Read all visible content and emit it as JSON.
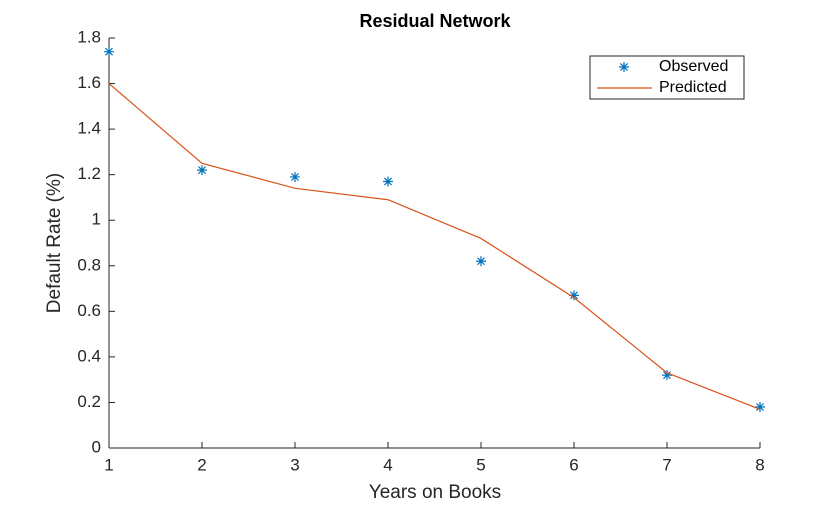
{
  "chart_data": {
    "type": "line",
    "title": "Residual Network",
    "x_label": "Years on Books",
    "y_label": "Default Rate (%)",
    "x": [
      1,
      2,
      3,
      4,
      5,
      6,
      7,
      8
    ],
    "series": [
      {
        "name": "Observed",
        "kind": "scatter",
        "color": "#0072bd",
        "values": [
          1.74,
          1.22,
          1.19,
          1.17,
          0.82,
          0.67,
          0.32,
          0.18
        ]
      },
      {
        "name": "Predicted",
        "kind": "line",
        "color": "#d95319",
        "values": [
          1.6,
          1.25,
          1.14,
          1.09,
          0.92,
          0.66,
          0.33,
          0.17
        ]
      }
    ],
    "xlim": [
      1,
      8
    ],
    "xticks": [
      1,
      2,
      3,
      4,
      5,
      6,
      7,
      8
    ],
    "ylim": [
      0,
      1.8
    ],
    "yticks": [
      0,
      0.2,
      0.4,
      0.6,
      0.8,
      1,
      1.2,
      1.4,
      1.6,
      1.8
    ],
    "legend": "top-right",
    "grid": false
  }
}
